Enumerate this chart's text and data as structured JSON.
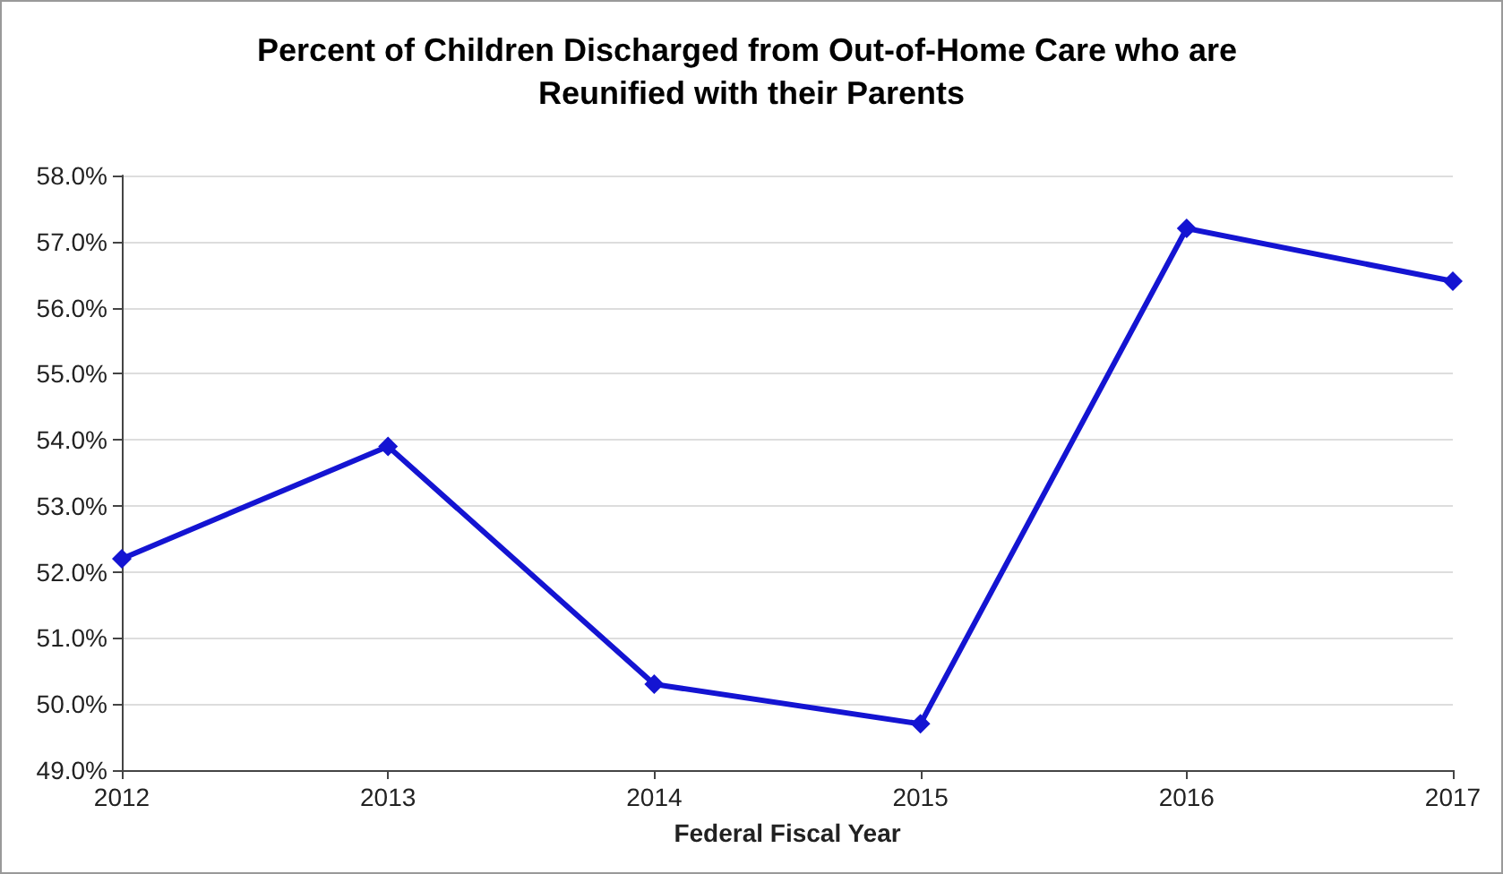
{
  "chart_data": {
    "type": "line",
    "title": "Percent of Children Discharged from Out-of-Home Care who are Reunified with their Parents",
    "xlabel": "Federal Fiscal Year",
    "categories": [
      "2012",
      "2013",
      "2014",
      "2015",
      "2016",
      "2017"
    ],
    "series": [
      {
        "color": "#1414d2",
        "values": [
          52.2,
          53.9,
          50.3,
          49.7,
          57.2,
          56.4
        ]
      }
    ],
    "ylim": [
      49,
      58
    ],
    "yticks": [
      {
        "value": 49,
        "label": "49.0%"
      },
      {
        "value": 50,
        "label": "50.0%"
      },
      {
        "value": 51,
        "label": "51.0%"
      },
      {
        "value": 52,
        "label": "52.0%"
      },
      {
        "value": 53,
        "label": "53.0%"
      },
      {
        "value": 54,
        "label": "54.0%"
      },
      {
        "value": 55,
        "label": "55.0%"
      },
      {
        "value": 56,
        "label": "56.0%"
      },
      {
        "value": 57,
        "label": "57.0%"
      },
      {
        "value": 58,
        "label": "58.0%"
      }
    ],
    "grid": "y",
    "marker": "diamond",
    "line_style": "solid"
  }
}
